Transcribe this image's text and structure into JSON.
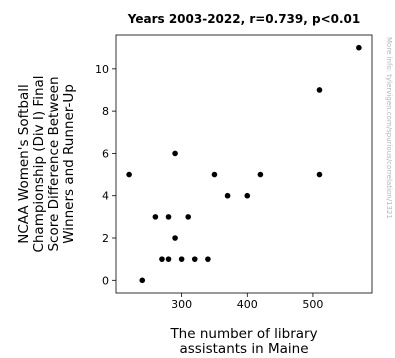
{
  "chart_data": {
    "type": "scatter",
    "title": "Years 2003-2022, r=0.739, p<0.01",
    "xlabel_lines": [
      "The number of library",
      "assistants in Maine"
    ],
    "ylabel_lines": [
      "NCAA Women's Softball",
      "Championship (Div I) Final",
      "Score Difference Between",
      "Winners and Runner-Up"
    ],
    "watermark": "More info: tylervigen.com/spurious/correlation/1321",
    "xlim": [
      200,
      590
    ],
    "ylim": [
      -0.6,
      11.6
    ],
    "x_ticks": [
      300,
      400,
      500
    ],
    "y_ticks": [
      0,
      2,
      4,
      6,
      8,
      10
    ],
    "grid": false,
    "point_color": "#000000",
    "points": [
      {
        "x": 220,
        "y": 5
      },
      {
        "x": 240,
        "y": 0
      },
      {
        "x": 260,
        "y": 3
      },
      {
        "x": 270,
        "y": 1
      },
      {
        "x": 280,
        "y": 3
      },
      {
        "x": 280,
        "y": 1
      },
      {
        "x": 290,
        "y": 6
      },
      {
        "x": 290,
        "y": 2
      },
      {
        "x": 300,
        "y": 1
      },
      {
        "x": 310,
        "y": 3
      },
      {
        "x": 320,
        "y": 1
      },
      {
        "x": 340,
        "y": 1
      },
      {
        "x": 350,
        "y": 5
      },
      {
        "x": 370,
        "y": 4
      },
      {
        "x": 400,
        "y": 4
      },
      {
        "x": 420,
        "y": 5
      },
      {
        "x": 510,
        "y": 9
      },
      {
        "x": 510,
        "y": 5
      },
      {
        "x": 570,
        "y": 11
      }
    ]
  }
}
